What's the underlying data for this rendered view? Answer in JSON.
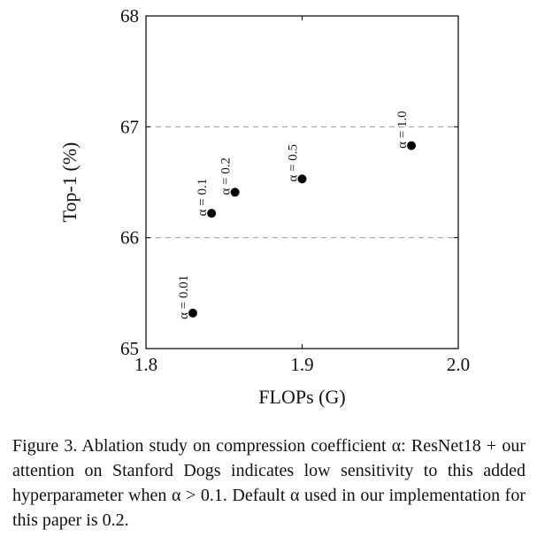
{
  "chart_data": {
    "type": "scatter",
    "title": "",
    "xlabel": "FLOPs (G)",
    "ylabel": "Top-1 (%)",
    "xlim": [
      1.8,
      2.0
    ],
    "ylim": [
      65,
      68
    ],
    "x_ticks": [
      1.8,
      1.9,
      2.0
    ],
    "x_tick_labels": [
      "1.8",
      "1.9",
      "2.0"
    ],
    "y_ticks": [
      65,
      66,
      67,
      68
    ],
    "y_tick_labels": [
      "65",
      "66",
      "67",
      "68"
    ],
    "grid": "horizontal dashed",
    "point_color": "#000000",
    "points": [
      {
        "x": 1.83,
        "y": 65.32,
        "label": "α = 0.01"
      },
      {
        "x": 1.842,
        "y": 66.22,
        "label": "α = 0.1"
      },
      {
        "x": 1.857,
        "y": 66.41,
        "label": "α = 0.2"
      },
      {
        "x": 1.9,
        "y": 66.53,
        "label": "α = 0.5"
      },
      {
        "x": 1.97,
        "y": 66.83,
        "label": "α = 1.0"
      }
    ]
  },
  "caption": {
    "text": "Figure 3. Ablation study on compression coefficient α: ResNet18 + our attention on Stanford Dogs indicates low sensitivity to this added hyperparameter when α > 0.1. Default α used in our implementation for this paper is 0.2."
  }
}
